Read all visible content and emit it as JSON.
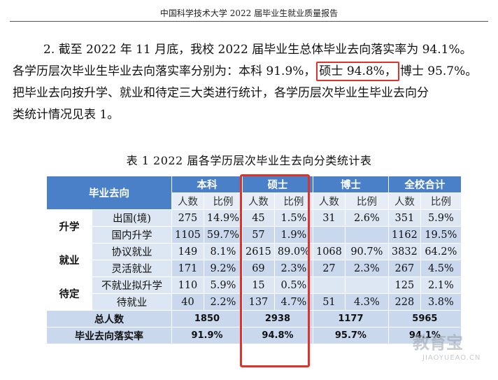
{
  "header": {
    "title": "中国科学技术大学 2022 届毕业生就业质量报告"
  },
  "paragraph": {
    "line1": "2.  截至 2022 年 11 月底，我校 2022 届毕业生总体毕业去向落实率为 94.1%。",
    "line2_before": "各学历层次毕业生毕业去向落实率分别为：本科 91.9%，",
    "line2_highlight": "硕士 94.8%，",
    "line2_after": "博士 95.7%。",
    "line3": "把毕业去向按升学、就业和待定三大类进行统计，各学历层次毕业生毕业去向分",
    "line4": "类统计情况见表 1。"
  },
  "table": {
    "caption": "表 1   2022 届各学历层次毕业生去向分类统计表",
    "corner": "毕业去向",
    "groups": [
      "本科",
      "硕士",
      "博士",
      "全校合计"
    ],
    "sub_count": "人数",
    "sub_ratio": "比例",
    "rows": [
      {
        "cat": "升学",
        "item": "出国(境)",
        "v": [
          "275",
          "14.9%",
          "45",
          "1.5%",
          "31",
          "2.6%",
          "351",
          "5.9%"
        ]
      },
      {
        "item": "国内升学",
        "v": [
          "1105",
          "59.7%",
          "57",
          "1.9%",
          "",
          "",
          "1162",
          "19.5%"
        ]
      },
      {
        "cat": "就业",
        "item": "协议就业",
        "v": [
          "149",
          "8.1%",
          "2615",
          "89.0%",
          "1068",
          "90.7%",
          "3832",
          "64.2%"
        ]
      },
      {
        "item": "灵活就业",
        "v": [
          "171",
          "9.2%",
          "69",
          "2.3%",
          "27",
          "2.3%",
          "267",
          "4.5%"
        ]
      },
      {
        "cat": "待定",
        "item": "不就业拟升学",
        "v": [
          "110",
          "5.9%",
          "15",
          "0.5%",
          "",
          "",
          "125",
          "2.1%"
        ]
      },
      {
        "item": "待就业",
        "v": [
          "40",
          "2.2%",
          "137",
          "4.7%",
          "51",
          "4.3%",
          "228",
          "3.8%"
        ]
      }
    ],
    "total_label": "总人数",
    "totals": [
      "1850",
      "2938",
      "1177",
      "5965"
    ],
    "rate_label": "毕业去向落实率",
    "rates": [
      "91.9%",
      "94.8%",
      "95.7%",
      "94.1%"
    ]
  },
  "watermark": {
    "text": "教育宝",
    "sub": "JIAOYUEAO.CN"
  },
  "colors": {
    "header_bg": "#4a80c8",
    "highlight": "#e0322b"
  }
}
